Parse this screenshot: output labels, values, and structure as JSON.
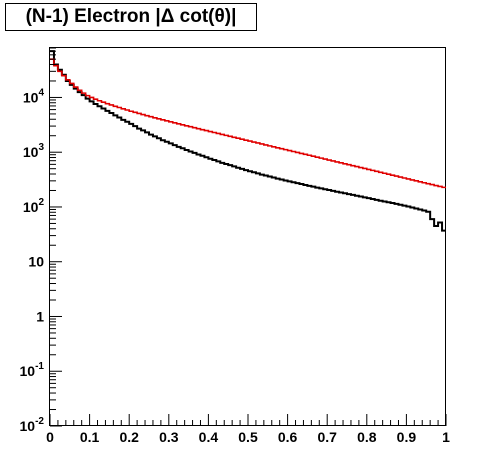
{
  "chart_data": {
    "type": "line",
    "title": "(N-1) Electron |Δ cot(θ)|",
    "xlabel": "",
    "ylabel": "",
    "xlim": [
      0,
      1
    ],
    "ylim": [
      0.01,
      80000
    ],
    "y_scale": "log",
    "grid": false,
    "x_ticks": [
      {
        "value": 0,
        "label": "0"
      },
      {
        "value": 0.1,
        "label": "0.1"
      },
      {
        "value": 0.2,
        "label": "0.2"
      },
      {
        "value": 0.3,
        "label": "0.3"
      },
      {
        "value": 0.4,
        "label": "0.4"
      },
      {
        "value": 0.5,
        "label": "0.5"
      },
      {
        "value": 0.6,
        "label": "0.6"
      },
      {
        "value": 0.7,
        "label": "0.7"
      },
      {
        "value": 0.8,
        "label": "0.8"
      },
      {
        "value": 0.9,
        "label": "0.9"
      },
      {
        "value": 1,
        "label": "1"
      }
    ],
    "y_ticks": [
      {
        "value": 0.01,
        "base": "10",
        "exp": "-2"
      },
      {
        "value": 0.1,
        "base": "10",
        "exp": "-1"
      },
      {
        "value": 1,
        "base": "1",
        "exp": ""
      },
      {
        "value": 10,
        "base": "10",
        "exp": ""
      },
      {
        "value": 100,
        "base": "10",
        "exp": "2"
      },
      {
        "value": 1000,
        "base": "10",
        "exp": "3"
      },
      {
        "value": 10000,
        "base": "10",
        "exp": "4"
      }
    ],
    "bin_edges_from": 0,
    "bin_width": 0.01,
    "series": [
      {
        "color": "#000000",
        "values": [
          70000,
          40000,
          32000,
          26000,
          20000,
          17000,
          14500,
          12500,
          11000,
          9500,
          8500,
          7600,
          6900,
          6300,
          5700,
          5200,
          4700,
          4300,
          3900,
          3600,
          3300,
          3000,
          2700,
          2500,
          2300,
          2100,
          1950,
          1800,
          1650,
          1550,
          1450,
          1350,
          1250,
          1180,
          1100,
          1030,
          970,
          910,
          860,
          810,
          760,
          720,
          680,
          640,
          610,
          580,
          550,
          520,
          495,
          470,
          450,
          430,
          410,
          390,
          375,
          360,
          345,
          330,
          318,
          305,
          293,
          282,
          272,
          262,
          252,
          243,
          235,
          226,
          218,
          211,
          204,
          197,
          190,
          184,
          178,
          172,
          166,
          160,
          155,
          150,
          145,
          140,
          135,
          130,
          126,
          122,
          118,
          114,
          110,
          106,
          102,
          98,
          94,
          90,
          86,
          82,
          60,
          45,
          52,
          37
        ]
      },
      {
        "color": "#e00000",
        "values": [
          50000,
          38000,
          30000,
          25000,
          21000,
          18000,
          15500,
          13500,
          12000,
          10800,
          10000,
          9300,
          8700,
          8200,
          7700,
          7300,
          6900,
          6550,
          6200,
          5900,
          5600,
          5350,
          5100,
          4870,
          4650,
          4450,
          4250,
          4070,
          3900,
          3740,
          3590,
          3440,
          3300,
          3170,
          3040,
          2920,
          2800,
          2690,
          2580,
          2480,
          2380,
          2290,
          2200,
          2110,
          2030,
          1950,
          1870,
          1800,
          1730,
          1660,
          1600,
          1535,
          1475,
          1415,
          1360,
          1305,
          1255,
          1205,
          1160,
          1115,
          1070,
          1030,
          990,
          950,
          915,
          880,
          845,
          812,
          780,
          750,
          720,
          692,
          665,
          640,
          615,
          591,
          568,
          546,
          525,
          505,
          485,
          466,
          448,
          430,
          413,
          397,
          381,
          366,
          352,
          338,
          325,
          312,
          300,
          288,
          277,
          266,
          256,
          246,
          237,
          228
        ]
      }
    ]
  }
}
